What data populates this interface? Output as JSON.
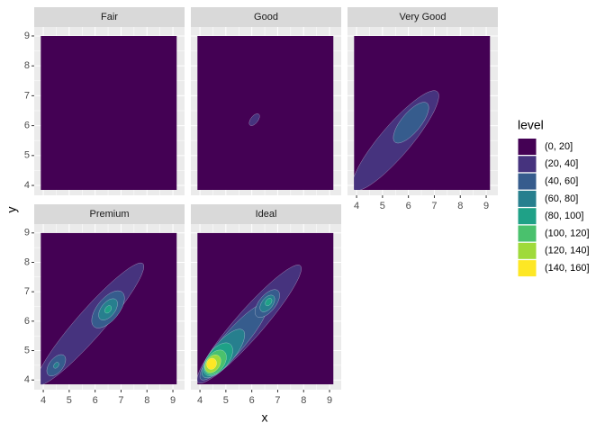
{
  "chart_data": {
    "type": "contour",
    "panels": [
      "Fair",
      "Good",
      "Very Good",
      "Premium",
      "Ideal"
    ],
    "x_label": "x",
    "y_label": "y",
    "xlim": [
      3.65,
      9.45
    ],
    "ylim": [
      3.67,
      9.3
    ],
    "xticks": [
      4,
      5,
      6,
      7,
      8,
      9
    ],
    "yticks": [
      4,
      5,
      6,
      7,
      8,
      9
    ],
    "grid": true,
    "legend_title": "level",
    "levels": [
      "(0, 20]",
      "(20, 40]",
      "(40, 60]",
      "(60, 80]",
      "(80, 100]",
      "(100, 120]",
      "(120, 140]",
      "(140, 160]"
    ],
    "colors": [
      "#440154",
      "#46337E",
      "#365C8D",
      "#277F8E",
      "#1FA187",
      "#4AC16D",
      "#9FDA3A",
      "#FDE725"
    ]
  }
}
